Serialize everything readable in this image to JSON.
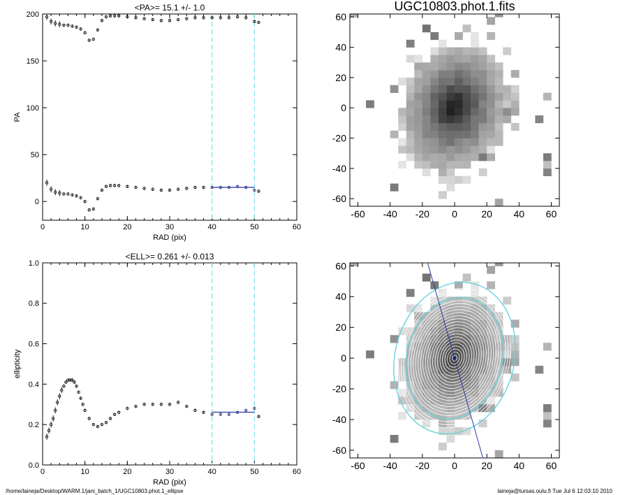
{
  "footer": {
    "path": "/home/laineja/Desktop/WARM.1/jani_batch_1/UGC10803.phot.1_ellipse",
    "user": "laineja@tursas.oulu.fi  Tue Jul  6 12:03:10 2010"
  },
  "chart_data": [
    {
      "type": "scatter",
      "title": "<PA>=  15.1 +/-   1.0",
      "xlabel": "RAD (pix)",
      "ylabel": "PA",
      "xlim": [
        0,
        60
      ],
      "ylim": [
        -20,
        200
      ],
      "xticks": [
        0,
        10,
        20,
        30,
        40,
        50,
        60
      ],
      "yticks": [
        0,
        50,
        100,
        150,
        200
      ],
      "fit_range": [
        40,
        50
      ],
      "mean_line": 15.1,
      "series": [
        {
          "x": [
            1,
            2,
            3,
            4,
            5,
            6,
            7,
            8,
            9,
            10,
            11,
            12,
            13,
            14,
            15,
            16,
            17,
            18,
            20,
            22,
            24,
            26,
            28,
            30,
            32,
            34,
            36,
            38,
            40,
            42,
            44,
            46,
            48,
            50,
            51
          ],
          "y": [
            20,
            13,
            10,
            9,
            8,
            8,
            7,
            6,
            4,
            0,
            -9,
            -8,
            3,
            12,
            16,
            17,
            17,
            17,
            16,
            15,
            14,
            13,
            12,
            12,
            13,
            14,
            15,
            15,
            15,
            15,
            15,
            16,
            15,
            12,
            11
          ]
        },
        {
          "x": [
            1,
            2,
            3,
            4,
            5,
            6,
            7,
            8,
            9,
            10,
            11,
            12,
            13,
            14,
            15,
            16,
            17,
            18,
            20,
            22,
            24,
            26,
            28,
            30,
            32,
            34,
            36,
            38,
            40,
            42,
            44,
            46,
            48,
            50,
            51
          ],
          "y": [
            197,
            192,
            190,
            189,
            188,
            188,
            187,
            186,
            184,
            180,
            172,
            173,
            183,
            193,
            197,
            198,
            198,
            198,
            197,
            196,
            195,
            194,
            193,
            193,
            194,
            195,
            196,
            196,
            196,
            196,
            196,
            197,
            196,
            192,
            191
          ]
        }
      ]
    },
    {
      "type": "heatmap",
      "title": "UGC10803.phot.1.fits",
      "xlim": [
        -65,
        65
      ],
      "ylim": [
        -65,
        62
      ],
      "xticks": [
        -60,
        -40,
        -20,
        0,
        20,
        40,
        60
      ],
      "yticks": [
        -60,
        -40,
        -20,
        0,
        20,
        40,
        60
      ]
    },
    {
      "type": "scatter",
      "title": "<ELL>= 0.261 +/-  0.013",
      "xlabel": "RAD (pix)",
      "ylabel": "ellipticity",
      "xlim": [
        0,
        60
      ],
      "ylim": [
        0,
        1
      ],
      "xticks": [
        0,
        10,
        20,
        30,
        40,
        50,
        60
      ],
      "yticks": [
        0.0,
        0.2,
        0.4,
        0.6,
        0.8,
        1.0
      ],
      "fit_range": [
        40,
        50
      ],
      "mean_line": 0.261,
      "series": [
        {
          "x": [
            1,
            1.5,
            2,
            2.5,
            3,
            3.5,
            4,
            4.5,
            5,
            5.5,
            6,
            6.5,
            7,
            7.5,
            8,
            8.5,
            9,
            9.5,
            10,
            11,
            12,
            13,
            14,
            15,
            16,
            17,
            18,
            20,
            22,
            24,
            26,
            28,
            30,
            32,
            34,
            36,
            38,
            40,
            42,
            44,
            46,
            48,
            50,
            51
          ],
          "y": [
            0.14,
            0.17,
            0.2,
            0.23,
            0.27,
            0.31,
            0.34,
            0.37,
            0.39,
            0.41,
            0.42,
            0.42,
            0.42,
            0.41,
            0.39,
            0.36,
            0.33,
            0.3,
            0.27,
            0.23,
            0.2,
            0.19,
            0.2,
            0.21,
            0.23,
            0.25,
            0.26,
            0.28,
            0.29,
            0.3,
            0.3,
            0.3,
            0.3,
            0.31,
            0.29,
            0.27,
            0.26,
            0.25,
            0.25,
            0.25,
            0.26,
            0.27,
            0.28,
            0.24
          ]
        }
      ]
    },
    {
      "type": "heatmap",
      "xlim": [
        -65,
        65
      ],
      "ylim": [
        -65,
        62
      ],
      "xticks": [
        -60,
        -40,
        -20,
        0,
        20,
        40,
        60
      ],
      "yticks": [
        -60,
        -40,
        -20,
        0,
        20,
        40,
        60
      ],
      "mean_ellipticity": 0.261,
      "mean_pa": 15.1
    }
  ]
}
